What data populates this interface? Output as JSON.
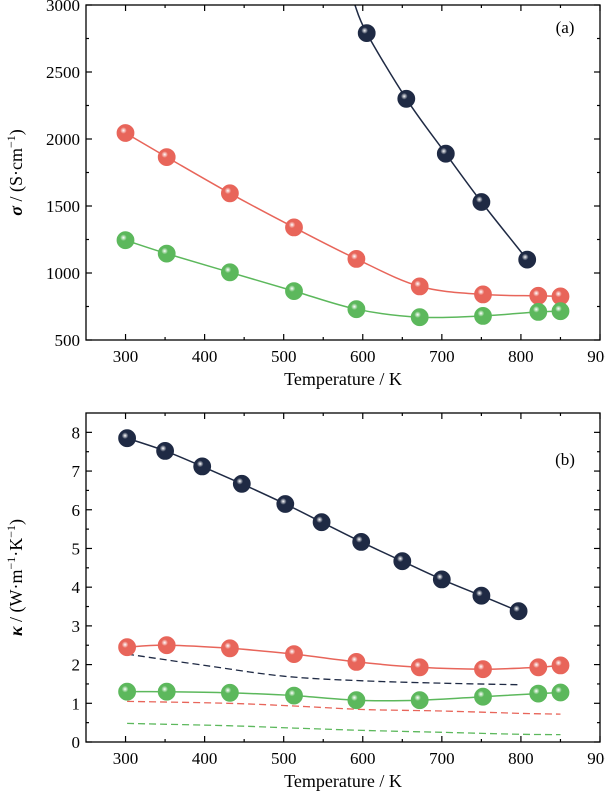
{
  "chart_data": [
    {
      "type": "scatter",
      "panel_label": "(a)",
      "xlabel": "Temperature / K",
      "ylabel": {
        "symbol": "σ",
        "unit": " / (S·cm",
        "sup": "−1",
        "close": ")"
      },
      "xlim": [
        250,
        900
      ],
      "ylim": [
        500,
        3000
      ],
      "xticks": [
        300,
        400,
        500,
        600,
        700,
        800,
        900
      ],
      "yticks": [
        500,
        1000,
        1500,
        2000,
        2500,
        3000
      ],
      "series": [
        {
          "color": "#1f2a44",
          "markers": [
            [
              605,
              2790
            ],
            [
              655,
              2300
            ],
            [
              705,
              1890
            ],
            [
              750,
              1530
            ],
            [
              808,
              1100
            ]
          ],
          "line": [
            [
              590,
              3000
            ],
            [
              605,
              2790
            ],
            [
              655,
              2300
            ],
            [
              705,
              1890
            ],
            [
              750,
              1530
            ],
            [
              808,
              1100
            ]
          ]
        },
        {
          "color": "#e8655a",
          "markers": [
            [
              300,
              2045
            ],
            [
              352,
              1865
            ],
            [
              432,
              1595
            ],
            [
              513,
              1340
            ],
            [
              592,
              1105
            ],
            [
              672,
              900
            ],
            [
              752,
              840
            ],
            [
              822,
              830
            ],
            [
              850,
              825
            ]
          ],
          "line": [
            [
              300,
              2045
            ],
            [
              352,
              1865
            ],
            [
              432,
              1595
            ],
            [
              513,
              1340
            ],
            [
              592,
              1105
            ],
            [
              672,
              900
            ],
            [
              752,
              840
            ],
            [
              822,
              830
            ],
            [
              850,
              825
            ]
          ]
        },
        {
          "color": "#5cb85c",
          "markers": [
            [
              300,
              1245
            ],
            [
              352,
              1145
            ],
            [
              432,
              1005
            ],
            [
              513,
              865
            ],
            [
              592,
              730
            ],
            [
              672,
              670
            ],
            [
              752,
              680
            ],
            [
              822,
              710
            ],
            [
              850,
              715
            ]
          ],
          "line": [
            [
              300,
              1245
            ],
            [
              352,
              1145
            ],
            [
              432,
              1005
            ],
            [
              513,
              865
            ],
            [
              592,
              730
            ],
            [
              672,
              670
            ],
            [
              752,
              680
            ],
            [
              822,
              710
            ],
            [
              850,
              715
            ]
          ]
        }
      ]
    },
    {
      "type": "scatter",
      "panel_label": "(b)",
      "xlabel": "Temperature / K",
      "ylabel": {
        "symbol": "κ",
        "unit": " / (W·m",
        "sup": "−1",
        "mid": "·K",
        "sup2": "−1",
        "close": ")"
      },
      "xlim": [
        250,
        900
      ],
      "ylim": [
        0,
        8.5
      ],
      "xticks": [
        300,
        400,
        500,
        600,
        700,
        800,
        900
      ],
      "yticks": [
        0,
        1,
        2,
        3,
        4,
        5,
        6,
        7,
        8
      ],
      "series": [
        {
          "color": "#1f2a44",
          "markers": [
            [
              302,
              7.85
            ],
            [
              350,
              7.52
            ],
            [
              397,
              7.12
            ],
            [
              447,
              6.67
            ],
            [
              502,
              6.15
            ],
            [
              548,
              5.68
            ],
            [
              598,
              5.17
            ],
            [
              650,
              4.67
            ],
            [
              700,
              4.2
            ],
            [
              750,
              3.78
            ],
            [
              797,
              3.38
            ]
          ],
          "line": [
            [
              302,
              7.85
            ],
            [
              350,
              7.52
            ],
            [
              397,
              7.12
            ],
            [
              447,
              6.67
            ],
            [
              502,
              6.15
            ],
            [
              548,
              5.68
            ],
            [
              598,
              5.17
            ],
            [
              650,
              4.67
            ],
            [
              700,
              4.2
            ],
            [
              750,
              3.78
            ],
            [
              797,
              3.38
            ]
          ]
        },
        {
          "color": "#e8655a",
          "markers": [
            [
              302,
              2.45
            ],
            [
              352,
              2.5
            ],
            [
              432,
              2.42
            ],
            [
              513,
              2.27
            ],
            [
              592,
              2.07
            ],
            [
              672,
              1.93
            ],
            [
              752,
              1.88
            ],
            [
              822,
              1.93
            ],
            [
              850,
              1.98
            ]
          ],
          "line": [
            [
              302,
              2.45
            ],
            [
              352,
              2.5
            ],
            [
              432,
              2.42
            ],
            [
              513,
              2.27
            ],
            [
              592,
              2.07
            ],
            [
              672,
              1.93
            ],
            [
              752,
              1.88
            ],
            [
              822,
              1.93
            ],
            [
              850,
              1.98
            ]
          ]
        },
        {
          "color": "#5cb85c",
          "markers": [
            [
              302,
              1.3
            ],
            [
              352,
              1.3
            ],
            [
              432,
              1.27
            ],
            [
              513,
              1.2
            ],
            [
              592,
              1.08
            ],
            [
              672,
              1.08
            ],
            [
              752,
              1.17
            ],
            [
              822,
              1.25
            ],
            [
              850,
              1.28
            ]
          ],
          "line": [
            [
              302,
              1.3
            ],
            [
              352,
              1.3
            ],
            [
              432,
              1.27
            ],
            [
              513,
              1.2
            ],
            [
              592,
              1.08
            ],
            [
              672,
              1.08
            ],
            [
              752,
              1.17
            ],
            [
              822,
              1.25
            ],
            [
              850,
              1.28
            ]
          ]
        },
        {
          "color": "#1f2a44",
          "dashed": true,
          "line": [
            [
              302,
              2.27
            ],
            [
              400,
              1.98
            ],
            [
              500,
              1.7
            ],
            [
              600,
              1.58
            ],
            [
              700,
              1.52
            ],
            [
              797,
              1.48
            ]
          ]
        },
        {
          "color": "#e8655a",
          "dashed": true,
          "line": [
            [
              302,
              1.05
            ],
            [
              430,
              1.0
            ],
            [
              513,
              0.93
            ],
            [
              600,
              0.84
            ],
            [
              700,
              0.8
            ],
            [
              800,
              0.74
            ],
            [
              850,
              0.72
            ]
          ]
        },
        {
          "color": "#5cb85c",
          "dashed": true,
          "line": [
            [
              302,
              0.48
            ],
            [
              430,
              0.42
            ],
            [
              513,
              0.36
            ],
            [
              600,
              0.3
            ],
            [
              700,
              0.25
            ],
            [
              800,
              0.2
            ],
            [
              850,
              0.19
            ]
          ]
        }
      ]
    }
  ]
}
